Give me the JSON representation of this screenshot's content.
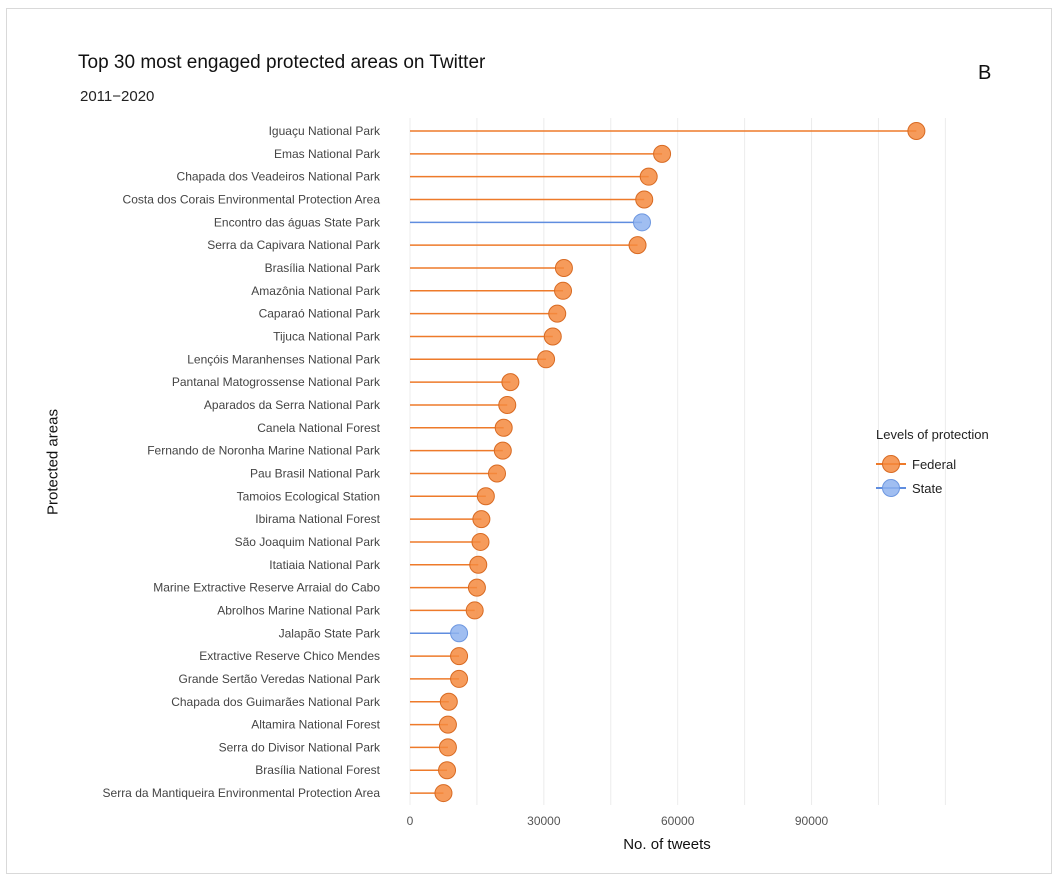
{
  "chart_data": {
    "type": "lollipop",
    "title": "Top 30 most engaged protected areas on Twitter",
    "subtitle": "2011−2020",
    "panel_label": "B",
    "xlabel": "No. of tweets",
    "ylabel": "Protected areas",
    "xlim": [
      0,
      130000
    ],
    "xticks": [
      {
        "value": 0,
        "label": "0"
      },
      {
        "value": 30000,
        "label": "30000"
      },
      {
        "value": 60000,
        "label": "60000"
      },
      {
        "value": 90000,
        "label": "90000"
      }
    ],
    "grid": true,
    "legend": {
      "title": "Levels of protection",
      "position": "right",
      "entries": [
        {
          "level": "Federal",
          "label": "Federal",
          "color": "#f58a3e"
        },
        {
          "level": "State",
          "label": "State",
          "color": "#8fb3ef"
        }
      ]
    },
    "colors": {
      "Federal": "#f58a3e",
      "Federal_line": "#ee7a2a",
      "State": "#8fb3ef",
      "State_line": "#5f8ddf"
    },
    "points": [
      {
        "area": "Iguaçu National Park",
        "value": 113500,
        "level": "Federal"
      },
      {
        "area": "Emas National Park",
        "value": 56500,
        "level": "Federal"
      },
      {
        "area": "Chapada dos Veadeiros National Park",
        "value": 53500,
        "level": "Federal"
      },
      {
        "area": "Costa dos Corais Environmental Protection Area",
        "value": 52500,
        "level": "Federal"
      },
      {
        "area": "Encontro das águas State Park",
        "value": 52000,
        "level": "State"
      },
      {
        "area": "Serra da Capivara National Park",
        "value": 51000,
        "level": "Federal"
      },
      {
        "area": "Brasília National Park",
        "value": 34500,
        "level": "Federal"
      },
      {
        "area": "Amazônia National Park",
        "value": 34300,
        "level": "Federal"
      },
      {
        "area": "Caparaó National Park",
        "value": 33000,
        "level": "Federal"
      },
      {
        "area": "Tijuca National Park",
        "value": 32000,
        "level": "Federal"
      },
      {
        "area": "Lençóis Maranhenses National Park",
        "value": 30500,
        "level": "Federal"
      },
      {
        "area": "Pantanal Matogrossense National Park",
        "value": 22500,
        "level": "Federal"
      },
      {
        "area": "Aparados da Serra National Park",
        "value": 21800,
        "level": "Federal"
      },
      {
        "area": "Canela National Forest",
        "value": 21000,
        "level": "Federal"
      },
      {
        "area": "Fernando de Noronha Marine National Park",
        "value": 20800,
        "level": "Federal"
      },
      {
        "area": "Pau Brasil National Park",
        "value": 19500,
        "level": "Federal"
      },
      {
        "area": "Tamoios Ecological Station",
        "value": 17000,
        "level": "Federal"
      },
      {
        "area": "Ibirama National Forest",
        "value": 16000,
        "level": "Federal"
      },
      {
        "area": "São Joaquim National Park",
        "value": 15800,
        "level": "Federal"
      },
      {
        "area": "Itatiaia National Park",
        "value": 15300,
        "level": "Federal"
      },
      {
        "area": "Marine Extractive Reserve Arraial do Cabo",
        "value": 15000,
        "level": "Federal"
      },
      {
        "area": "Abrolhos Marine National Park",
        "value": 14500,
        "level": "Federal"
      },
      {
        "area": "Jalapão State Park",
        "value": 11000,
        "level": "State"
      },
      {
        "area": "Extractive Reserve Chico Mendes",
        "value": 11000,
        "level": "Federal"
      },
      {
        "area": "Grande Sertão Veredas National Park",
        "value": 11000,
        "level": "Federal"
      },
      {
        "area": "Chapada dos Guimarães National Park",
        "value": 8700,
        "level": "Federal"
      },
      {
        "area": "Altamira National Forest",
        "value": 8500,
        "level": "Federal"
      },
      {
        "area": "Serra do Divisor National Park",
        "value": 8500,
        "level": "Federal"
      },
      {
        "area": "Brasília National Forest",
        "value": 8300,
        "level": "Federal"
      },
      {
        "area": "Serra da Mantiqueira Environmental Protection Area",
        "value": 7500,
        "level": "Federal"
      }
    ]
  }
}
